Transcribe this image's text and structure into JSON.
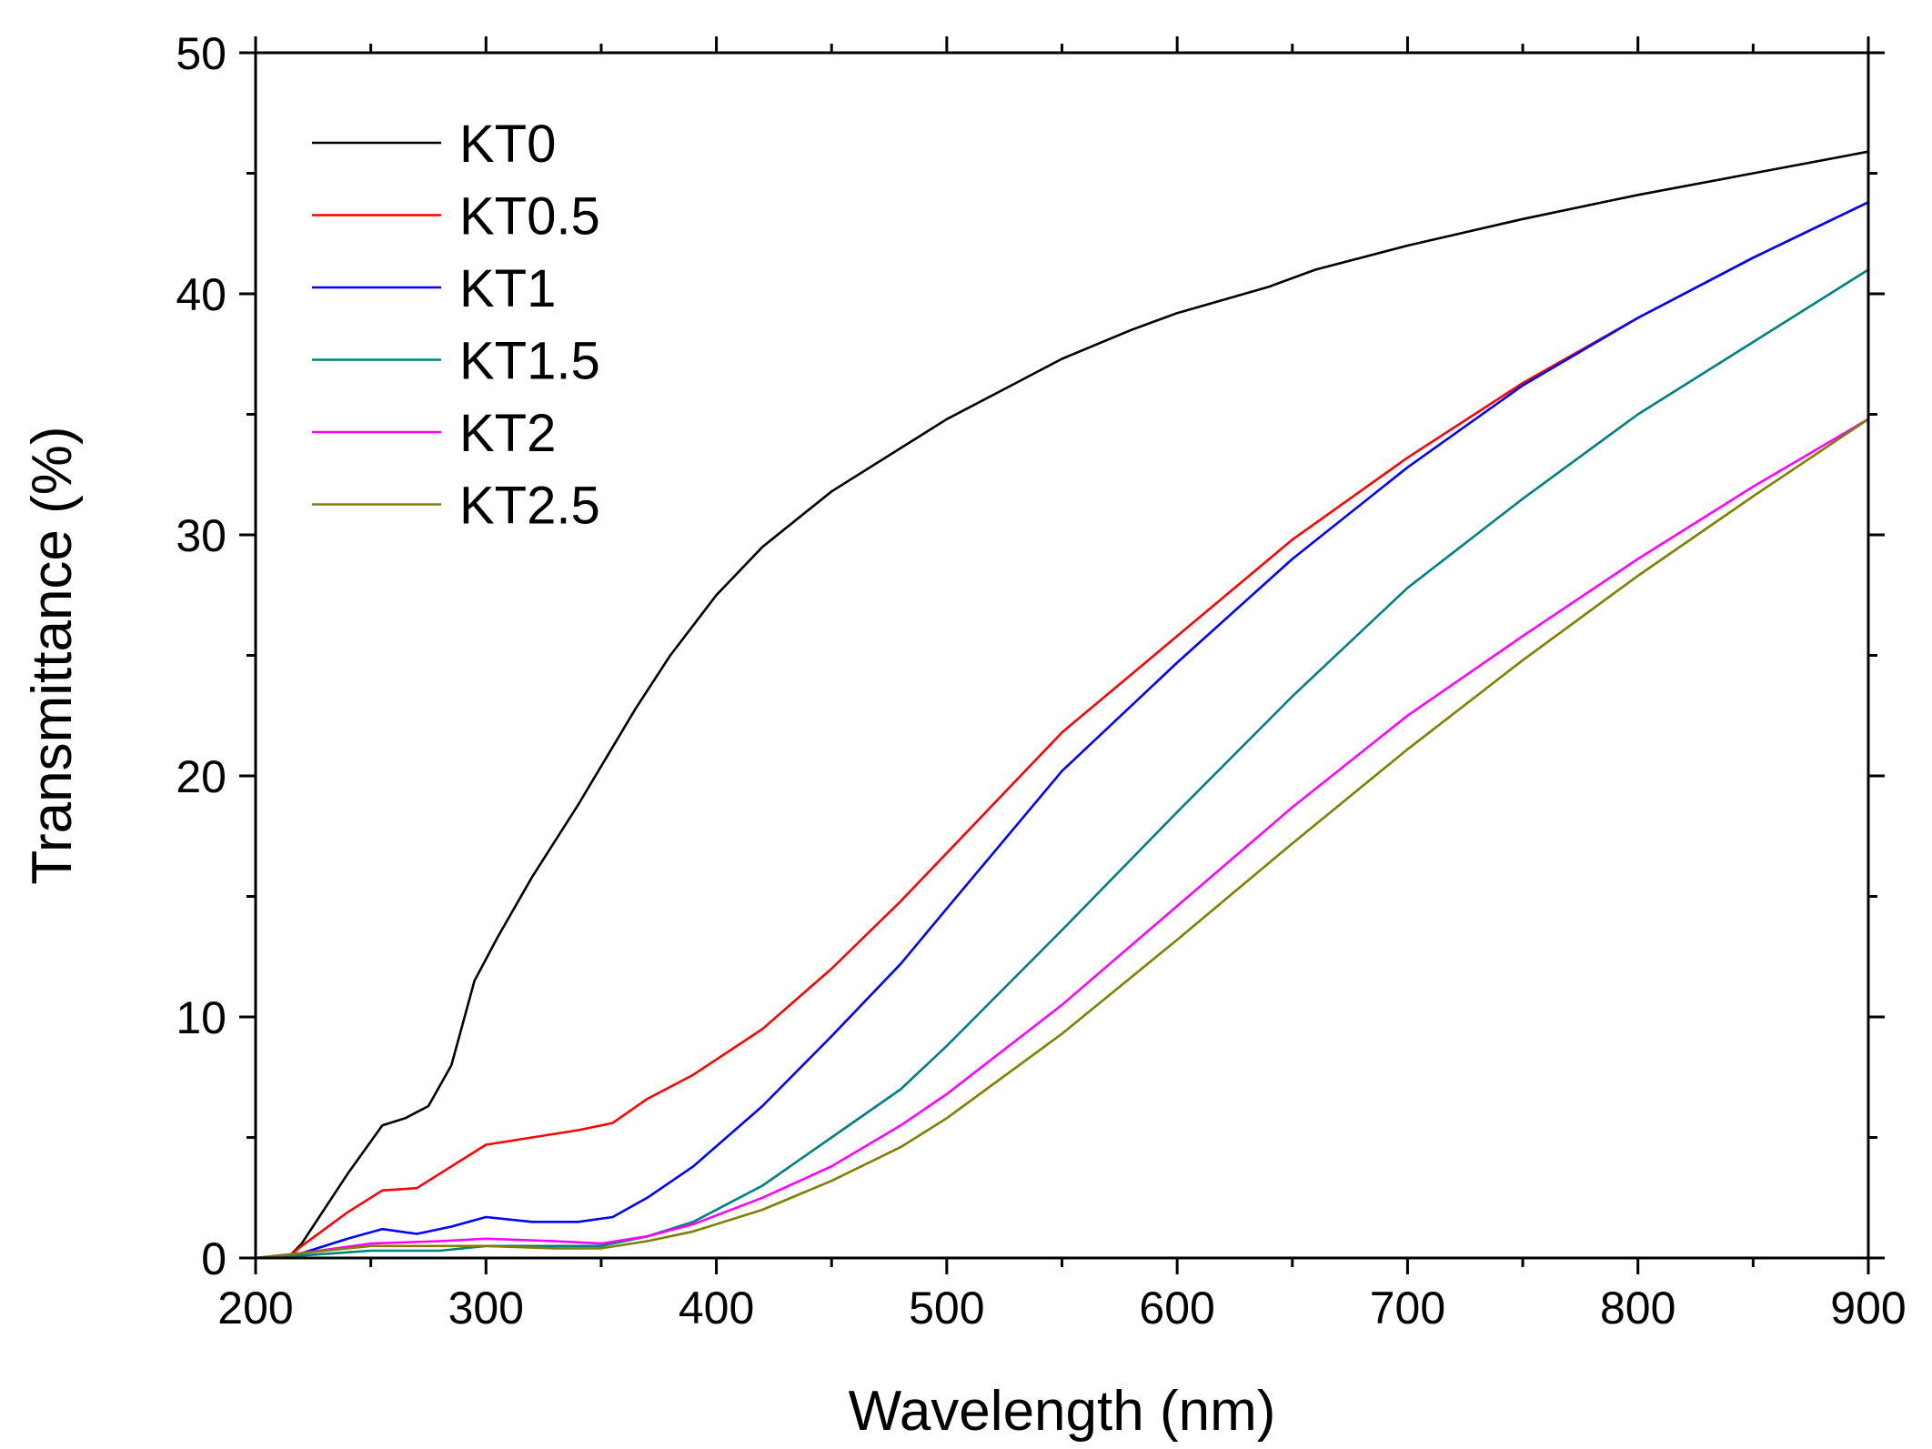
{
  "chart_data": {
    "type": "line",
    "title": "",
    "xlabel": "Wavelength (nm)",
    "ylabel": "Transmittance (%)",
    "xlim": [
      200,
      900
    ],
    "ylim": [
      0,
      50
    ],
    "x_ticks": [
      200,
      300,
      400,
      500,
      600,
      700,
      800,
      900
    ],
    "y_ticks": [
      0,
      10,
      20,
      30,
      40,
      50
    ],
    "x_tick_labels": [
      "200",
      "300",
      "400",
      "500",
      "600",
      "700",
      "800",
      "900"
    ],
    "y_tick_labels": [
      "0",
      "10",
      "20",
      "30",
      "40",
      "50"
    ],
    "grid": false,
    "legend_position": "top-left",
    "series": [
      {
        "name": "KT0",
        "color": "#000000",
        "x": [
          200,
          215,
          220,
          240,
          255,
          265,
          275,
          285,
          295,
          305,
          320,
          340,
          365,
          380,
          400,
          420,
          450,
          480,
          500,
          530,
          550,
          580,
          600,
          640,
          660,
          700,
          750,
          800,
          850,
          900
        ],
        "y": [
          0,
          0.1,
          0.6,
          3.5,
          5.5,
          5.8,
          6.3,
          8.0,
          11.5,
          13.3,
          15.8,
          18.8,
          22.8,
          25.0,
          27.5,
          29.5,
          31.8,
          33.6,
          34.8,
          36.3,
          37.3,
          38.5,
          39.2,
          40.3,
          41.0,
          42.0,
          43.1,
          44.1,
          45.0,
          45.9
        ]
      },
      {
        "name": "KT0.5",
        "color": "#ff0000",
        "x": [
          200,
          215,
          220,
          240,
          255,
          270,
          285,
          300,
          320,
          340,
          355,
          370,
          390,
          420,
          450,
          480,
          500,
          550,
          600,
          650,
          700,
          750,
          800,
          850,
          900
        ],
        "y": [
          0,
          0.1,
          0.5,
          1.9,
          2.8,
          2.9,
          3.8,
          4.7,
          5.0,
          5.3,
          5.6,
          6.6,
          7.6,
          9.5,
          12.0,
          14.8,
          16.8,
          21.8,
          25.8,
          29.8,
          33.2,
          36.3,
          39.0,
          41.5,
          43.8
        ]
      },
      {
        "name": "KT1",
        "color": "#0000ff",
        "x": [
          200,
          220,
          240,
          255,
          270,
          285,
          300,
          320,
          340,
          355,
          370,
          390,
          420,
          450,
          480,
          500,
          550,
          600,
          650,
          700,
          750,
          800,
          850,
          900
        ],
        "y": [
          0,
          0.2,
          0.8,
          1.2,
          1.0,
          1.3,
          1.7,
          1.5,
          1.5,
          1.7,
          2.5,
          3.8,
          6.3,
          9.2,
          12.2,
          14.5,
          20.2,
          24.7,
          29.0,
          32.8,
          36.2,
          39.0,
          41.5,
          43.8
        ]
      },
      {
        "name": "KT1.5",
        "color": "#008080",
        "x": [
          200,
          220,
          250,
          280,
          300,
          330,
          350,
          370,
          390,
          420,
          450,
          480,
          500,
          550,
          600,
          650,
          700,
          750,
          800,
          850,
          900
        ],
        "y": [
          0,
          0.1,
          0.3,
          0.3,
          0.5,
          0.5,
          0.5,
          0.9,
          1.5,
          3.0,
          5.0,
          7.0,
          8.8,
          13.6,
          18.5,
          23.3,
          27.8,
          31.5,
          35.0,
          38.0,
          41.0
        ]
      },
      {
        "name": "KT2",
        "color": "#ff00ff",
        "x": [
          200,
          220,
          250,
          280,
          300,
          330,
          350,
          370,
          390,
          420,
          450,
          480,
          500,
          550,
          600,
          650,
          700,
          750,
          800,
          850,
          900
        ],
        "y": [
          0,
          0.2,
          0.6,
          0.7,
          0.8,
          0.7,
          0.6,
          0.9,
          1.4,
          2.5,
          3.8,
          5.5,
          6.8,
          10.5,
          14.6,
          18.7,
          22.5,
          25.8,
          29.0,
          32.0,
          34.8
        ]
      },
      {
        "name": "KT2.5",
        "color": "#808000",
        "x": [
          200,
          220,
          250,
          280,
          300,
          330,
          350,
          370,
          390,
          420,
          450,
          480,
          500,
          550,
          600,
          650,
          700,
          750,
          800,
          850,
          900
        ],
        "y": [
          0,
          0.2,
          0.5,
          0.5,
          0.5,
          0.4,
          0.4,
          0.7,
          1.1,
          2.0,
          3.2,
          4.6,
          5.8,
          9.3,
          13.2,
          17.2,
          21.1,
          24.8,
          28.3,
          31.6,
          34.8
        ]
      }
    ]
  }
}
